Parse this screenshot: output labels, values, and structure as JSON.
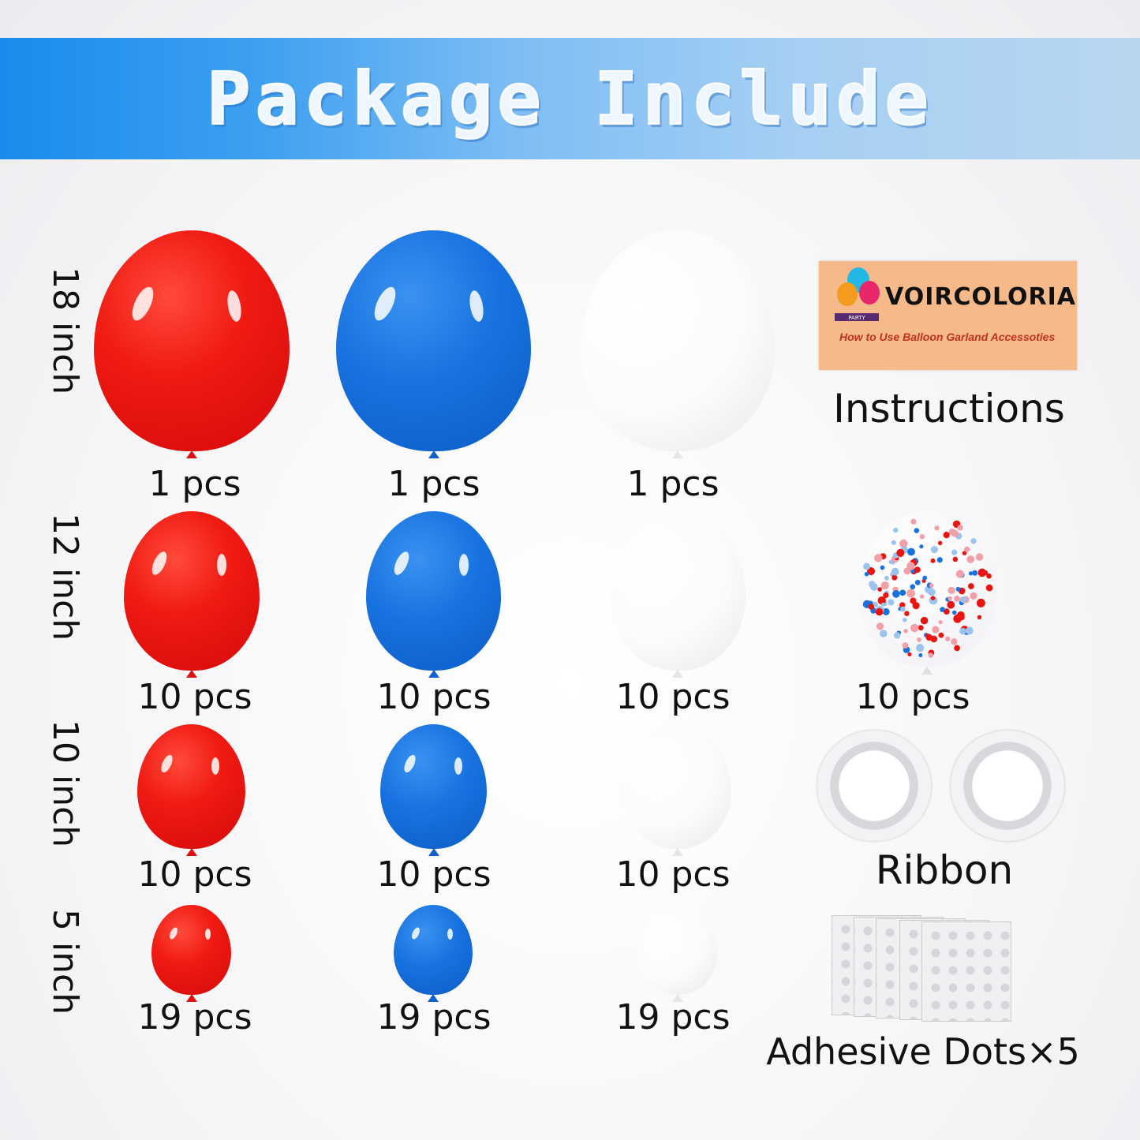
{
  "header": {
    "title": "Package Include"
  },
  "sizes": [
    "18 inch",
    "12 inch",
    "10 inch",
    "5 inch"
  ],
  "colors": {
    "red": "#e81410",
    "blue": "#1772e0",
    "white": "#ffffff",
    "banner": "#1a8cec"
  },
  "rows": [
    {
      "size": "18 inch",
      "red": "1 pcs",
      "blue": "1 pcs",
      "white": "1 pcs"
    },
    {
      "size": "12 inch",
      "red": "10 pcs",
      "blue": "10 pcs",
      "white": "10 pcs",
      "confetti": "10 pcs"
    },
    {
      "size": "10 inch",
      "red": "10 pcs",
      "blue": "10 pcs",
      "white": "10 pcs"
    },
    {
      "size": "5 inch",
      "red": "19 pcs",
      "blue": "19 pcs",
      "white": "19 pcs"
    }
  ],
  "instructions": {
    "brand": "VOIRCOLORIA",
    "badge": "PARTY",
    "subtitle": "How to Use Balloon Garland Accessoties",
    "label": "Instructions"
  },
  "ribbon": {
    "label": "Ribbon"
  },
  "adhesive": {
    "label": "Adhesive Dots×5"
  }
}
